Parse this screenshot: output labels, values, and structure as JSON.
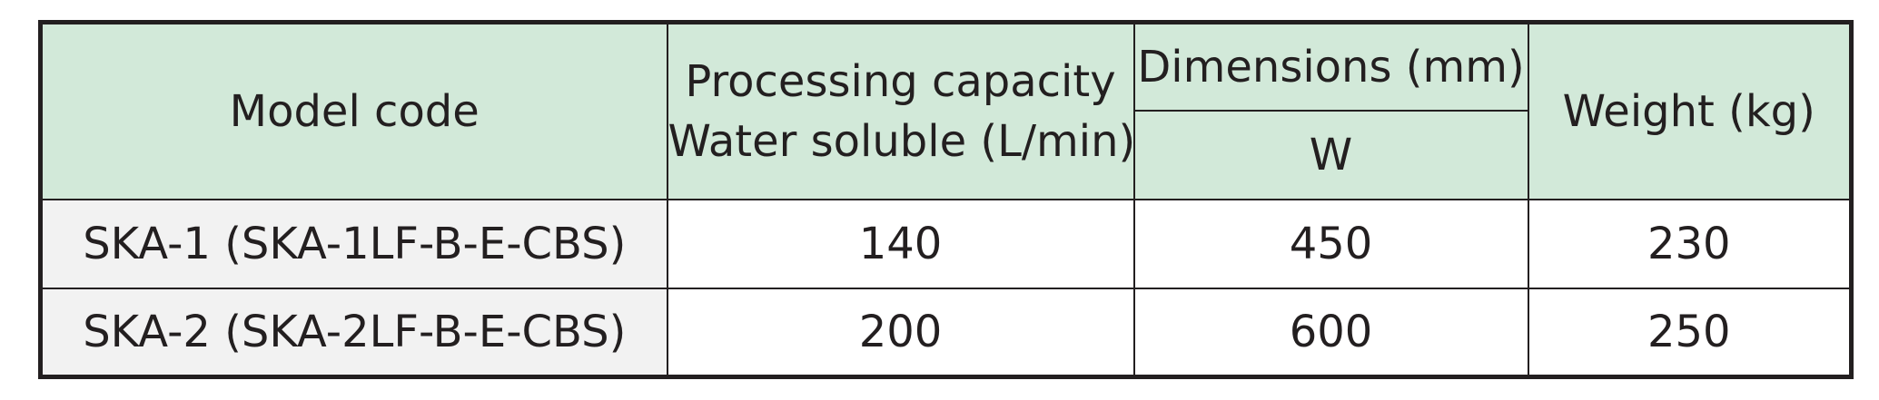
{
  "table": {
    "headers": {
      "model_code": "Model code",
      "processing_capacity_line1": "Processing capacity",
      "processing_capacity_line2": "Water soluble (L/min)",
      "dimensions": "Dimensions (mm)",
      "dimensions_w": "W",
      "weight": "Weight (kg)"
    },
    "rows": [
      {
        "model": "SKA-1 (SKA-1LF-B-E-CBS)",
        "capacity": "140",
        "width": "450",
        "weight": "230"
      },
      {
        "model": "SKA-2 (SKA-2LF-B-E-CBS)",
        "capacity": "200",
        "width": "600",
        "weight": "250"
      }
    ]
  }
}
